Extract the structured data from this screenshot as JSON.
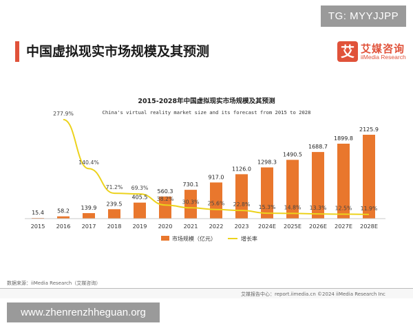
{
  "badge": "TG: MYYJJPP",
  "page_title": "中国虚拟现实市场规模及其预测",
  "logo": {
    "mark": "艾",
    "name_cn": "艾媒咨询",
    "name_en": "iiMedia Research"
  },
  "source": "数据来源：iiMedia Research（艾媒咨询）",
  "footer": "艾媒报告中心：report.iimedia.cn   ©2024   iiMedia Research  Inc",
  "watermark": "www.zhenrenzhheguan.org",
  "colors": {
    "bar": "#e9772d",
    "line": "#ecd21c",
    "accent": "#e0523a"
  },
  "chart_data": {
    "type": "bar",
    "title": "2015-2028年中国虚拟现实市场规模及其预测",
    "subtitle": "China's virtual reality market size and its forecast from 2015 to 2028",
    "categories": [
      "2015",
      "2016",
      "2017",
      "2018",
      "2019",
      "2020",
      "2021",
      "2022",
      "2023",
      "2024E",
      "2025E",
      "2026E",
      "2027E",
      "2028E"
    ],
    "series": [
      {
        "name": "市场规模（亿元）",
        "type": "bar",
        "values": [
          15.4,
          58.2,
          139.9,
          239.5,
          405.5,
          560.3,
          730.1,
          917.0,
          1126.0,
          1298.3,
          1490.5,
          1688.7,
          1899.8,
          2125.9
        ],
        "labels": [
          "15.4",
          "58.2",
          "139.9",
          "239.5",
          "405.5",
          "560.3",
          "730.1",
          "917.0",
          "1126.0",
          "1298.3",
          "1490.5",
          "1688.7",
          "1899.8",
          "2125.9"
        ]
      },
      {
        "name": "增长率",
        "type": "line",
        "values": [
          null,
          277.9,
          140.4,
          71.2,
          69.3,
          38.2,
          30.3,
          25.6,
          22.8,
          15.3,
          14.8,
          13.3,
          12.5,
          11.9
        ],
        "labels": [
          "",
          "277.9%",
          "140.4%",
          "71.2%",
          "69.3%",
          "38.2%",
          "30.3%",
          "25.6%",
          "22.8%",
          "15.3%",
          "14.8%",
          "13.3%",
          "12.5%",
          "11.9%"
        ]
      }
    ],
    "ylim": [
      0,
      2200
    ],
    "y2lim": [
      0,
      300
    ],
    "grid": false,
    "legend": "bottom"
  }
}
